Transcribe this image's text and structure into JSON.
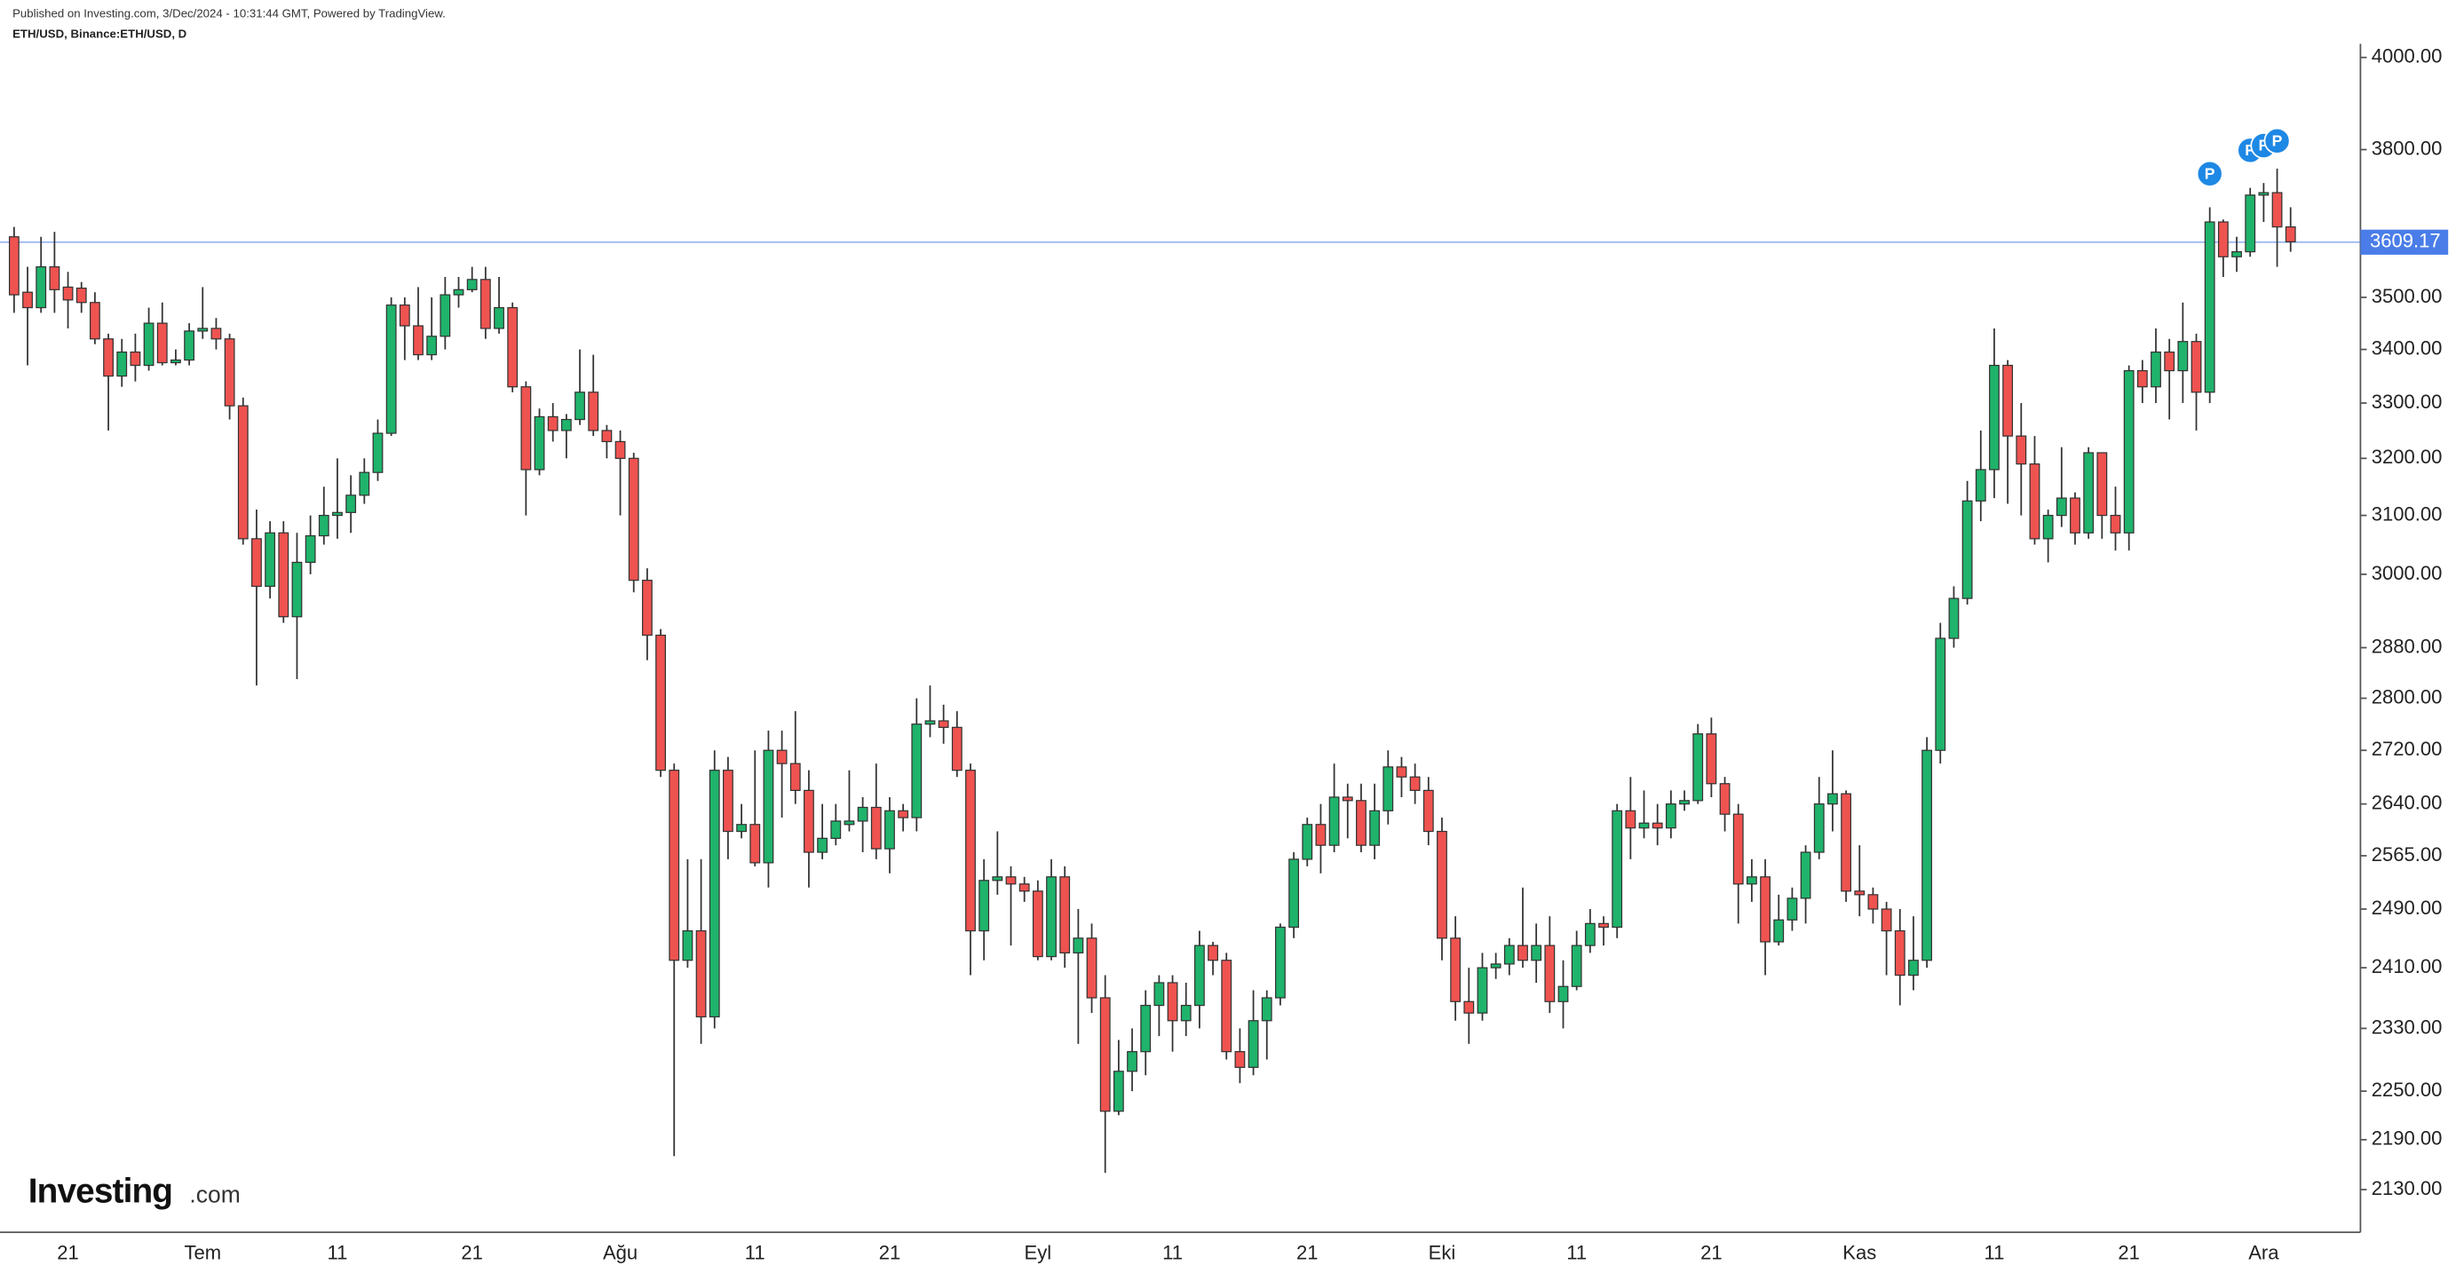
{
  "header": {
    "published": "Published on Investing.com, 3/Dec/2024 - 10:31:44 GMT, Powered by TradingView."
  },
  "logo": {
    "brand": "Investing",
    "suffix": ".com"
  },
  "chart_data": {
    "type": "candlestick",
    "title": "ETH/USD, Binance:ETH/USD, D",
    "up_color": "#1fb36b",
    "down_color": "#ef5350",
    "log": true,
    "grid": false,
    "ylim": [
      2080,
      4130
    ],
    "yticks": [
      {
        "value": 2130,
        "label": "2130.00"
      },
      {
        "value": 2190,
        "label": "2190.00"
      },
      {
        "value": 2250,
        "label": "2250.00"
      },
      {
        "value": 2330,
        "label": "2330.00"
      },
      {
        "value": 2410,
        "label": "2410.00"
      },
      {
        "value": 2490,
        "label": "2490.00"
      },
      {
        "value": 2565,
        "label": "2565.00"
      },
      {
        "value": 2640,
        "label": "2640.00"
      },
      {
        "value": 2720,
        "label": "2720.00"
      },
      {
        "value": 2800,
        "label": "2800.00"
      },
      {
        "value": 2880,
        "label": "2880.00"
      },
      {
        "value": 3000,
        "label": "3000.00"
      },
      {
        "value": 3100,
        "label": "3100.00"
      },
      {
        "value": 3200,
        "label": "3200.00"
      },
      {
        "value": 3300,
        "label": "3300.00"
      },
      {
        "value": 3400,
        "label": "3400.00"
      },
      {
        "value": 3500,
        "label": "3500.00"
      },
      {
        "value": 3800,
        "label": "3800.00"
      },
      {
        "value": 4000,
        "label": "4000.00"
      }
    ],
    "last_price": {
      "value": 3609.17,
      "color": "#4a7de8"
    },
    "annotations": [
      "P",
      "P",
      "P",
      "P"
    ],
    "categories": [
      null,
      null,
      null,
      null,
      "21",
      null,
      null,
      null,
      null,
      null,
      null,
      null,
      null,
      null,
      "Tem",
      null,
      null,
      null,
      null,
      null,
      null,
      null,
      null,
      null,
      "11",
      null,
      null,
      null,
      null,
      null,
      null,
      null,
      null,
      null,
      "21",
      null,
      null,
      null,
      null,
      null,
      null,
      null,
      null,
      null,
      null,
      "Ağu",
      null,
      null,
      null,
      null,
      null,
      null,
      null,
      null,
      null,
      "11",
      null,
      null,
      null,
      null,
      null,
      null,
      null,
      null,
      null,
      "21",
      null,
      null,
      null,
      null,
      null,
      null,
      null,
      null,
      null,
      null,
      "Eyl",
      null,
      null,
      null,
      null,
      null,
      null,
      null,
      null,
      null,
      "11",
      null,
      null,
      null,
      null,
      null,
      null,
      null,
      null,
      null,
      "21",
      null,
      null,
      null,
      null,
      null,
      null,
      null,
      null,
      null,
      "Eki",
      null,
      null,
      null,
      null,
      null,
      null,
      null,
      null,
      null,
      "11",
      null,
      null,
      null,
      null,
      null,
      null,
      null,
      null,
      null,
      "21",
      null,
      null,
      null,
      null,
      null,
      null,
      null,
      null,
      null,
      null,
      "Kas",
      null,
      null,
      null,
      null,
      null,
      null,
      null,
      null,
      null,
      "11",
      null,
      null,
      null,
      null,
      null,
      null,
      null,
      null,
      null,
      "21",
      null,
      null,
      null,
      null,
      null,
      null,
      null,
      null,
      null,
      "Ara",
      null,
      null
    ],
    "open": [
      3620,
      3510,
      3480,
      3560,
      3520,
      3518,
      3490,
      3420,
      3350,
      3395,
      3370,
      3450,
      3375,
      3380,
      3435,
      3440,
      3420,
      3295,
      3060,
      2980,
      3070,
      2930,
      3020,
      3065,
      3100,
      3105,
      3135,
      3175,
      3245,
      3485,
      3445,
      3390,
      3425,
      3505,
      3515,
      3535,
      3440,
      3480,
      3330,
      3180,
      3275,
      3250,
      3270,
      3320,
      3250,
      3230,
      3200,
      2990,
      2900,
      2690,
      2420,
      2460,
      2345,
      2690,
      2600,
      2610,
      2555,
      2720,
      2700,
      2660,
      2570,
      2590,
      2610,
      2615,
      2635,
      2575,
      2630,
      2620,
      2760,
      2765,
      2755,
      2690,
      2460,
      2530,
      2535,
      2525,
      2515,
      2425,
      2535,
      2430,
      2450,
      2370,
      2225,
      2275,
      2300,
      2360,
      2390,
      2340,
      2360,
      2440,
      2420,
      2300,
      2280,
      2340,
      2370,
      2465,
      2560,
      2610,
      2580,
      2650,
      2645,
      2580,
      2630,
      2695,
      2680,
      2660,
      2600,
      2450,
      2365,
      2350,
      2410,
      2415,
      2440,
      2420,
      2440,
      2365,
      2385,
      2440,
      2470,
      2465,
      2630,
      2605,
      2612,
      2605,
      2640,
      2645,
      2745,
      2670,
      2625,
      2525,
      2535,
      2445,
      2475,
      2505,
      2570,
      2640,
      2655,
      2515,
      2510,
      2490,
      2460,
      2400,
      2420,
      2720,
      2895,
      2960,
      3125,
      3180,
      3370,
      3240,
      3190,
      3060,
      3100,
      3130,
      3070,
      3210,
      3100,
      3070,
      3360,
      3330,
      3395,
      3360,
      3415,
      3320,
      3650,
      3580,
      3590,
      3705,
      3710,
      3640
    ],
    "high": [
      3640,
      3560,
      3620,
      3630,
      3550,
      3530,
      3510,
      3430,
      3420,
      3430,
      3480,
      3490,
      3400,
      3450,
      3520,
      3460,
      3430,
      3310,
      3110,
      3090,
      3090,
      3070,
      3100,
      3150,
      3200,
      3170,
      3200,
      3270,
      3500,
      3500,
      3520,
      3500,
      3540,
      3540,
      3560,
      3560,
      3540,
      3490,
      3340,
      3290,
      3300,
      3280,
      3400,
      3390,
      3260,
      3250,
      3210,
      3010,
      2910,
      2700,
      2560,
      2560,
      2720,
      2710,
      2640,
      2720,
      2750,
      2750,
      2780,
      2690,
      2640,
      2640,
      2690,
      2650,
      2700,
      2650,
      2640,
      2800,
      2820,
      2790,
      2780,
      2700,
      2560,
      2600,
      2550,
      2535,
      2530,
      2560,
      2550,
      2490,
      2470,
      2400,
      2315,
      2330,
      2380,
      2400,
      2400,
      2390,
      2460,
      2445,
      2430,
      2330,
      2380,
      2380,
      2470,
      2570,
      2620,
      2640,
      2700,
      2670,
      2670,
      2670,
      2720,
      2710,
      2700,
      2680,
      2620,
      2480,
      2410,
      2430,
      2430,
      2450,
      2520,
      2470,
      2480,
      2420,
      2460,
      2490,
      2480,
      2640,
      2680,
      2660,
      2640,
      2660,
      2660,
      2760,
      2770,
      2680,
      2640,
      2560,
      2560,
      2510,
      2520,
      2580,
      2680,
      2720,
      2660,
      2580,
      2520,
      2500,
      2490,
      2480,
      2740,
      2920,
      2980,
      3160,
      3250,
      3440,
      3380,
      3300,
      3240,
      3110,
      3220,
      3140,
      3220,
      3210,
      3150,
      3370,
      3380,
      3440,
      3420,
      3490,
      3430,
      3680,
      3655,
      3620,
      3720,
      3730,
      3760,
      3680
    ],
    "low": [
      3470,
      3370,
      3470,
      3470,
      3440,
      3470,
      3410,
      3250,
      3330,
      3340,
      3360,
      3370,
      3370,
      3370,
      3420,
      3400,
      3270,
      3050,
      2820,
      2960,
      2920,
      2830,
      3000,
      3050,
      3060,
      3070,
      3120,
      3160,
      3240,
      3380,
      3380,
      3380,
      3400,
      3480,
      3510,
      3420,
      3430,
      3320,
      3100,
      3170,
      3230,
      3200,
      3260,
      3240,
      3200,
      3100,
      2970,
      2860,
      2680,
      2170,
      2410,
      2310,
      2330,
      2560,
      2590,
      2550,
      2520,
      2620,
      2640,
      2520,
      2560,
      2580,
      2600,
      2570,
      2560,
      2540,
      2600,
      2600,
      2740,
      2730,
      2680,
      2400,
      2420,
      2510,
      2440,
      2500,
      2420,
      2420,
      2410,
      2310,
      2350,
      2150,
      2220,
      2250,
      2270,
      2320,
      2300,
      2320,
      2330,
      2400,
      2290,
      2260,
      2270,
      2290,
      2360,
      2450,
      2550,
      2540,
      2570,
      2590,
      2570,
      2560,
      2610,
      2650,
      2640,
      2580,
      2420,
      2340,
      2310,
      2340,
      2395,
      2400,
      2410,
      2390,
      2350,
      2330,
      2380,
      2430,
      2440,
      2450,
      2560,
      2590,
      2580,
      2590,
      2630,
      2640,
      2650,
      2600,
      2470,
      2500,
      2400,
      2440,
      2460,
      2470,
      2560,
      2600,
      2500,
      2480,
      2470,
      2400,
      2360,
      2380,
      2410,
      2700,
      2880,
      2950,
      3090,
      3130,
      3120,
      3100,
      3050,
      3020,
      3080,
      3050,
      3060,
      3060,
      3040,
      3040,
      3300,
      3300,
      3270,
      3300,
      3250,
      3300,
      3540,
      3550,
      3580,
      3650,
      3560,
      3590
    ],
    "close": [
      3505,
      3480,
      3560,
      3515,
      3495,
      3490,
      3420,
      3350,
      3395,
      3370,
      3450,
      3375,
      3380,
      3435,
      3440,
      3420,
      3295,
      3060,
      2980,
      3070,
      2930,
      3020,
      3065,
      3100,
      3105,
      3135,
      3175,
      3245,
      3485,
      3445,
      3390,
      3425,
      3505,
      3515,
      3535,
      3440,
      3480,
      3330,
      3180,
      3275,
      3250,
      3270,
      3320,
      3250,
      3230,
      3200,
      2990,
      2900,
      2690,
      2420,
      2460,
      2345,
      2690,
      2600,
      2610,
      2555,
      2720,
      2700,
      2660,
      2570,
      2590,
      2615,
      2615,
      2635,
      2575,
      2630,
      2620,
      2760,
      2765,
      2755,
      2690,
      2460,
      2530,
      2535,
      2525,
      2515,
      2425,
      2535,
      2430,
      2450,
      2370,
      2225,
      2275,
      2300,
      2360,
      2390,
      2340,
      2360,
      2440,
      2420,
      2300,
      2280,
      2340,
      2370,
      2465,
      2560,
      2610,
      2580,
      2650,
      2645,
      2580,
      2630,
      2695,
      2680,
      2660,
      2600,
      2450,
      2365,
      2350,
      2410,
      2415,
      2440,
      2420,
      2440,
      2365,
      2385,
      2440,
      2470,
      2465,
      2630,
      2605,
      2612,
      2605,
      2640,
      2645,
      2745,
      2670,
      2625,
      2525,
      2535,
      2445,
      2475,
      2505,
      2570,
      2640,
      2655,
      2515,
      2510,
      2490,
      2460,
      2400,
      2420,
      2720,
      2895,
      2960,
      3125,
      3180,
      3370,
      3240,
      3190,
      3060,
      3100,
      3130,
      3070,
      3210,
      3100,
      3070,
      3360,
      3330,
      3395,
      3360,
      3415,
      3320,
      3650,
      3580,
      3590,
      3705,
      3710,
      3640,
      3610
    ]
  }
}
